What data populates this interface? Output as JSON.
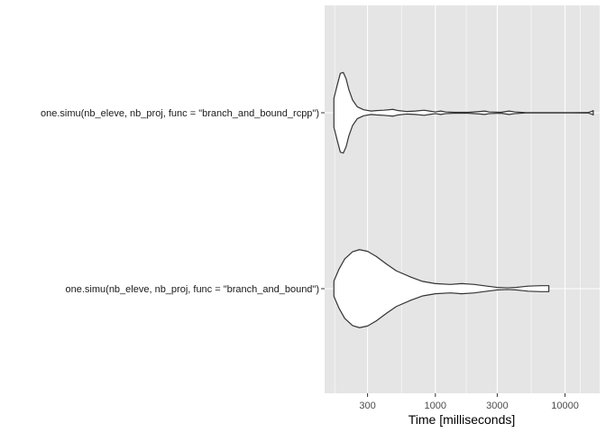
{
  "chart_data": {
    "type": "violin",
    "orientation": "horizontal",
    "xlabel": "Time [milliseconds]",
    "x_scale": "log10",
    "xlim": [
      140,
      18500
    ],
    "x_ticks": [
      300,
      1000,
      3000,
      10000
    ],
    "x_tick_labels": [
      "300",
      "1000",
      "3000",
      "10000"
    ],
    "grid": true,
    "legend": "none",
    "panel_background": "#e5e5e5",
    "grid_color": "#ffffff",
    "violin_fill": "#ffffff",
    "violin_stroke": "#333333",
    "categories": [
      "one.simu(nb_eleve, nb_proj, func = \"branch_and_bound_rcpp\")",
      "one.simu(nb_eleve, nb_proj, func = \"branch_and_bound\")"
    ],
    "series": [
      {
        "name": "one.simu(nb_eleve, nb_proj, func = \"branch_and_bound_rcpp\")",
        "min_ms": 165,
        "max_ms": 16500,
        "density_profile": [
          [
            165,
            0.34
          ],
          [
            175,
            0.65
          ],
          [
            185,
            0.93
          ],
          [
            195,
            0.95
          ],
          [
            205,
            0.8
          ],
          [
            215,
            0.55
          ],
          [
            230,
            0.3
          ],
          [
            250,
            0.14
          ],
          [
            280,
            0.07
          ],
          [
            320,
            0.04
          ],
          [
            350,
            0.05
          ],
          [
            400,
            0.06
          ],
          [
            470,
            0.08
          ],
          [
            520,
            0.05
          ],
          [
            600,
            0.03
          ],
          [
            700,
            0.04
          ],
          [
            820,
            0.06
          ],
          [
            900,
            0.04
          ],
          [
            1000,
            0.02
          ],
          [
            1100,
            0.04
          ],
          [
            1200,
            0.02
          ],
          [
            1400,
            0.01
          ],
          [
            1800,
            0.01
          ],
          [
            2200,
            0.03
          ],
          [
            2400,
            0.04
          ],
          [
            2600,
            0.02
          ],
          [
            3200,
            0.01
          ],
          [
            3700,
            0.04
          ],
          [
            4100,
            0.02
          ],
          [
            5000,
            0.003
          ],
          [
            10000,
            0.003
          ],
          [
            15000,
            0.005
          ],
          [
            16000,
            0.03
          ],
          [
            16500,
            0.05
          ]
        ]
      },
      {
        "name": "one.simu(nb_eleve, nb_proj, func = \"branch_and_bound\")",
        "min_ms": 165,
        "max_ms": 7500,
        "density_profile": [
          [
            165,
            0.18
          ],
          [
            180,
            0.45
          ],
          [
            200,
            0.7
          ],
          [
            230,
            0.87
          ],
          [
            260,
            0.92
          ],
          [
            300,
            0.88
          ],
          [
            350,
            0.76
          ],
          [
            420,
            0.58
          ],
          [
            500,
            0.42
          ],
          [
            650,
            0.27
          ],
          [
            800,
            0.17
          ],
          [
            1000,
            0.12
          ],
          [
            1300,
            0.1
          ],
          [
            1600,
            0.12
          ],
          [
            2000,
            0.1
          ],
          [
            2500,
            0.06
          ],
          [
            3000,
            0.03
          ],
          [
            3600,
            0.02
          ],
          [
            4200,
            0.03
          ],
          [
            5200,
            0.06
          ],
          [
            6500,
            0.07
          ],
          [
            7500,
            0.07
          ]
        ]
      }
    ]
  }
}
